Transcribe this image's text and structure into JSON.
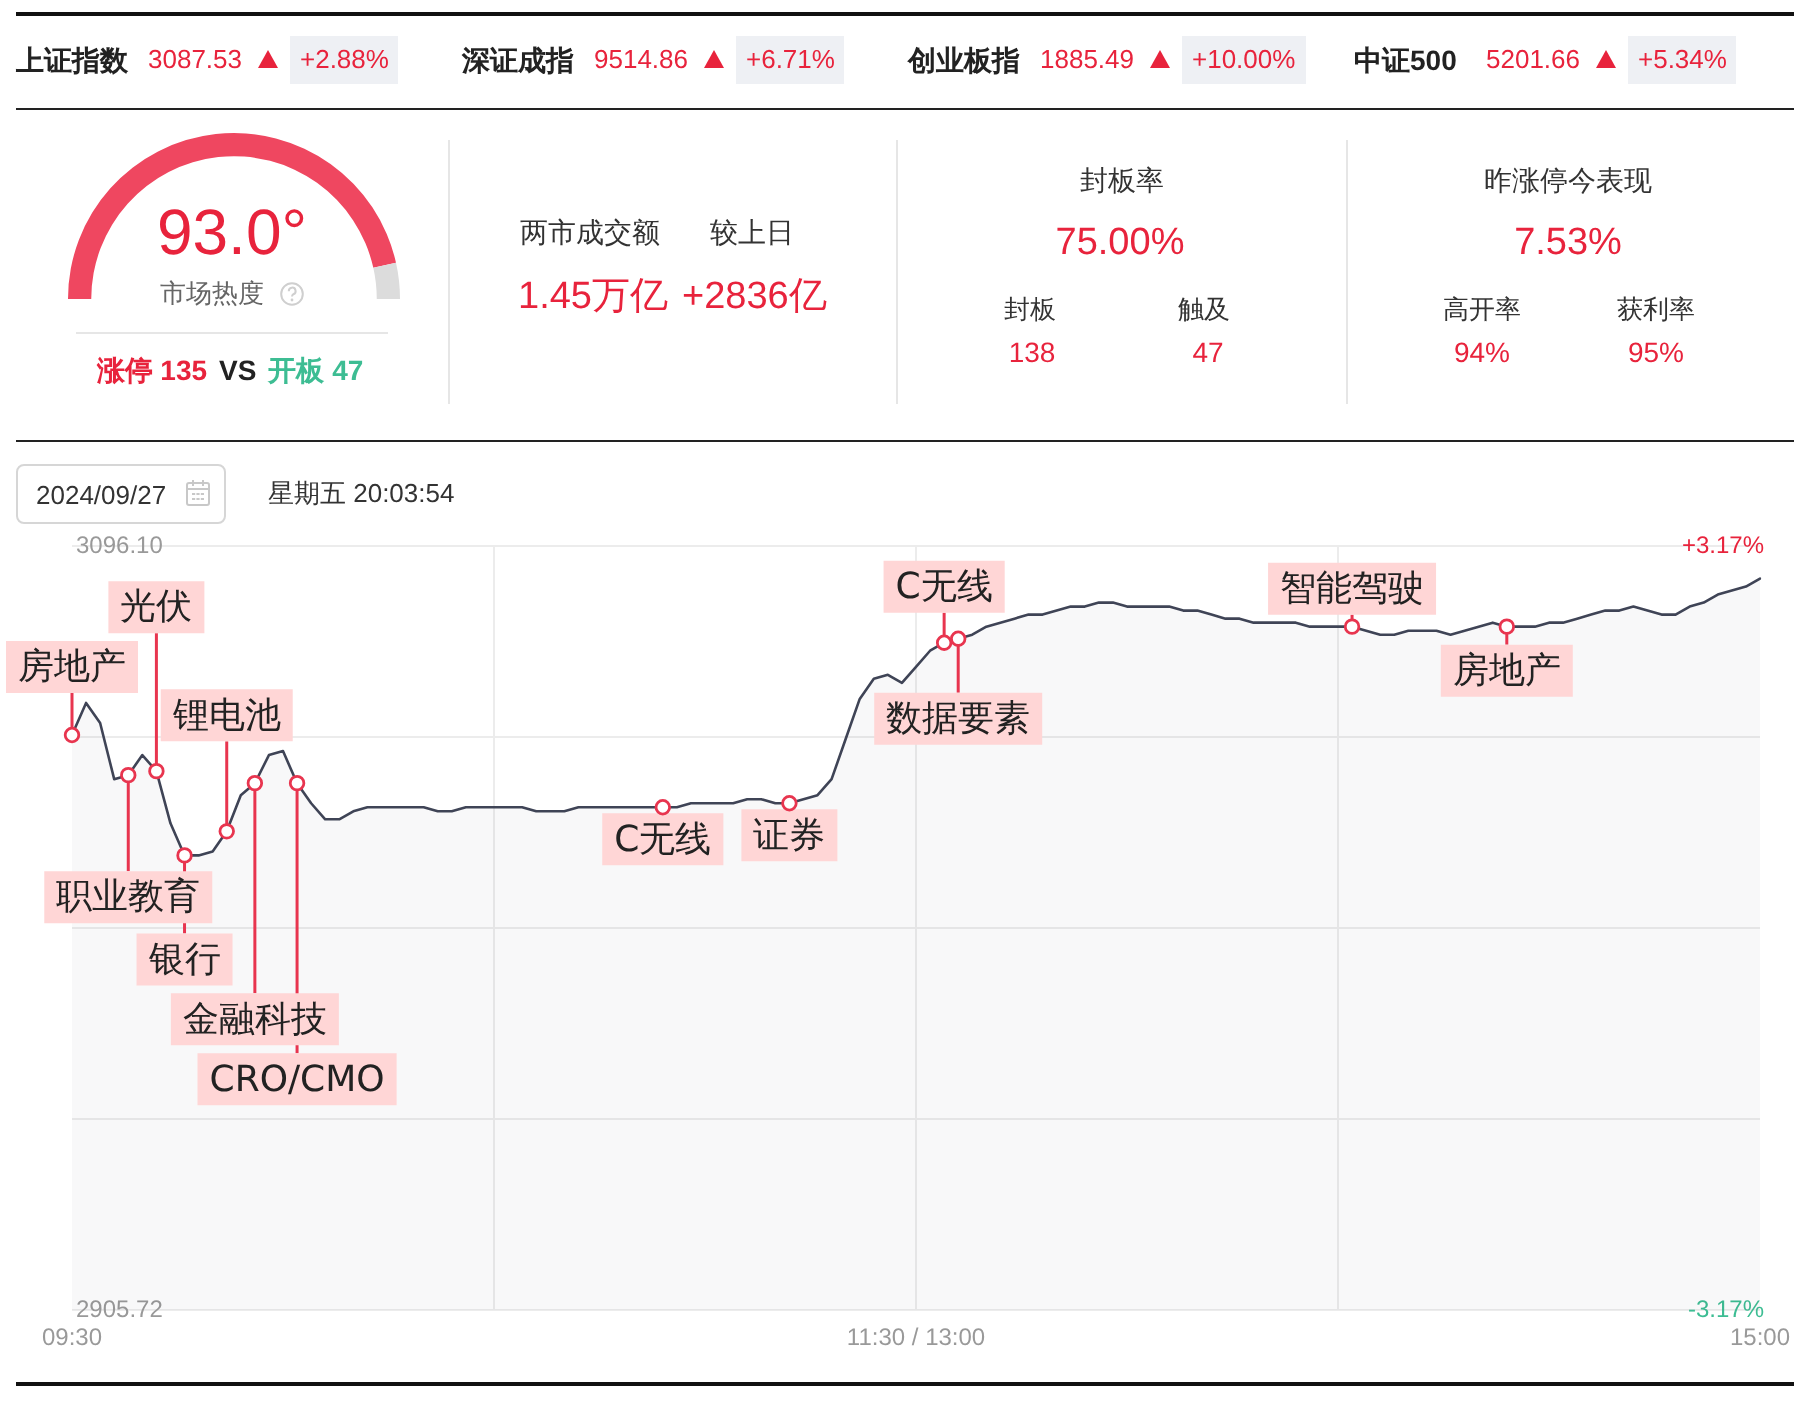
{
  "chart_data": [
    {
      "type": "other",
      "annotations": [
        "上证指数",
        "3087.53",
        "+2.88%",
        "深证成指",
        "9514.86",
        "+6.71%",
        "创业板指",
        "1885.49",
        "+10.00%",
        "中证500",
        "5201.66",
        "+5.34%"
      ]
    },
    {
      "type": "donut",
      "categories": [
        null,
        null
      ],
      "values": [
        93,
        7
      ],
      "colors": [
        "#ef4760",
        "#dcdcdc"
      ],
      "annotations": [
        "93.0°",
        "市场热度",
        "涨停 135",
        "VS",
        "开板 47"
      ]
    },
    {
      "type": "other",
      "annotations": [
        "两市成交额",
        "较上日",
        "1.45万亿",
        "+2836亿",
        "封板率",
        "75.00%",
        "封板",
        "触及",
        "138",
        "47",
        "昨涨停今表现",
        "7.53%",
        "高开率",
        "获利率",
        "94%",
        "95%"
      ]
    },
    {
      "type": "area",
      "title": "2024/09/27",
      "subtitle": "星期五 20:03:54",
      "categories": [
        "09:30",
        null,
        null,
        null,
        null,
        null,
        null,
        null,
        null,
        null,
        null,
        null,
        null,
        null,
        null,
        null,
        null,
        null,
        null,
        null,
        null,
        null,
        null,
        null,
        null,
        null,
        null,
        null,
        null,
        null,
        null,
        null,
        null,
        null,
        null,
        null,
        null,
        null,
        null,
        null,
        null,
        null,
        null,
        null,
        null,
        null,
        null,
        null,
        null,
        null,
        null,
        null,
        null,
        null,
        null,
        null,
        null,
        null,
        null,
        null,
        "11:30 / 13:00",
        null,
        null,
        null,
        null,
        null,
        null,
        null,
        null,
        null,
        null,
        null,
        null,
        null,
        null,
        null,
        null,
        null,
        null,
        null,
        null,
        null,
        null,
        null,
        null,
        null,
        null,
        null,
        null,
        null,
        null,
        null,
        null,
        null,
        null,
        null,
        null,
        null,
        null,
        null,
        null,
        null,
        null,
        null,
        null,
        null,
        null,
        null,
        null,
        null,
        null,
        null,
        null,
        null,
        null,
        null,
        null,
        null,
        null,
        null,
        "15:00"
      ],
      "series": [
        {
          "color": "#3f4456",
          "values": [
            3049,
            3057,
            3052,
            3038,
            3039,
            3044,
            3040,
            3027,
            3019,
            3019,
            3020,
            3025,
            3034,
            3037,
            3044,
            3045,
            3037,
            3032,
            3028,
            3028,
            3030,
            3031,
            3031,
            3031,
            3031,
            3031,
            3030,
            3030,
            3031,
            3031,
            3031,
            3031,
            3031,
            3030,
            3030,
            3030,
            3031,
            3031,
            3031,
            3031,
            3031,
            3031,
            3031,
            3031,
            3032,
            3032,
            3032,
            3032,
            3033,
            3033,
            3032,
            3032,
            3033,
            3034,
            3038,
            3048,
            3058,
            3063,
            3064,
            3062,
            3066,
            3070,
            3072,
            3073,
            3074,
            3076,
            3077,
            3078,
            3079,
            3079,
            3080,
            3081,
            3081,
            3082,
            3082,
            3081,
            3081,
            3081,
            3081,
            3080,
            3080,
            3079,
            3078,
            3078,
            3077,
            3077,
            3077,
            3077,
            3076,
            3076,
            3076,
            3076,
            3075,
            3074,
            3074,
            3075,
            3075,
            3075,
            3074,
            3075,
            3076,
            3077,
            3076,
            3076,
            3076,
            3077,
            3077,
            3078,
            3079,
            3080,
            3080,
            3081,
            3080,
            3079,
            3079,
            3081,
            3082,
            3084,
            3085,
            3086,
            3088
          ]
        },
        {
          "type": "scatter",
          "color": "#e8354f",
          "marker": "circle",
          "values": [
            3049,
            null,
            null,
            null,
            3039,
            null,
            3040,
            null,
            3019,
            null,
            null,
            3025,
            null,
            3037,
            null,
            null,
            3037,
            null,
            null,
            null,
            null,
            null,
            null,
            null,
            null,
            null,
            null,
            null,
            null,
            null,
            null,
            null,
            null,
            null,
            null,
            null,
            null,
            null,
            null,
            null,
            null,
            null,
            3031,
            null,
            null,
            null,
            null,
            null,
            null,
            null,
            null,
            3032,
            null,
            null,
            null,
            null,
            null,
            null,
            null,
            null,
            null,
            null,
            3072,
            3073,
            null,
            null,
            null,
            null,
            null,
            null,
            null,
            null,
            null,
            null,
            null,
            null,
            null,
            null,
            null,
            null,
            null,
            null,
            null,
            null,
            null,
            null,
            null,
            null,
            null,
            null,
            null,
            3076,
            null,
            null,
            null,
            null,
            null,
            null,
            null,
            null,
            null,
            null,
            3076,
            null,
            null,
            null,
            null,
            null,
            null,
            null,
            null,
            null,
            null,
            null,
            null,
            null,
            null,
            null,
            null,
            null,
            null
          ]
        }
      ],
      "ylim": [
        2905.72,
        3096.1
      ],
      "yticks": [
        2905.72,
        {
          "value": 2953.315,
          "label": null
        },
        {
          "value": 3000.91,
          "label": null
        },
        {
          "value": 3048.505,
          "label": null
        },
        {
          "value": 3096.1,
          "label": "3096.10"
        }
      ],
      "y2lim": [
        -3.17,
        3.17
      ],
      "y2ticks": [
        {
          "value": -3.17,
          "label": "-3.17%"
        },
        {
          "value": 3.17,
          "label": "+3.17%"
        }
      ],
      "grid": true,
      "annotations": [
        {
          "text": "房地产",
          "y": 3049
        },
        {
          "text": "职业教育",
          "y": 3039
        },
        {
          "text": "光伏",
          "y": 3040
        },
        {
          "text": "银行",
          "y": 3019
        },
        {
          "text": "锂电池",
          "y": 3025
        },
        {
          "text": "金融科技",
          "y": 3037
        },
        {
          "text": "CRO/CMO",
          "y": 3037
        },
        {
          "text": "C无线",
          "y": 3031
        },
        {
          "text": "证券",
          "y": 3032
        },
        {
          "text": "C无线",
          "y": 3072
        },
        {
          "text": "数据要素",
          "y": 3073
        },
        {
          "text": "智能驾驶",
          "y": 3076
        },
        {
          "text": "房地产",
          "y": 3076
        }
      ]
    }
  ]
}
